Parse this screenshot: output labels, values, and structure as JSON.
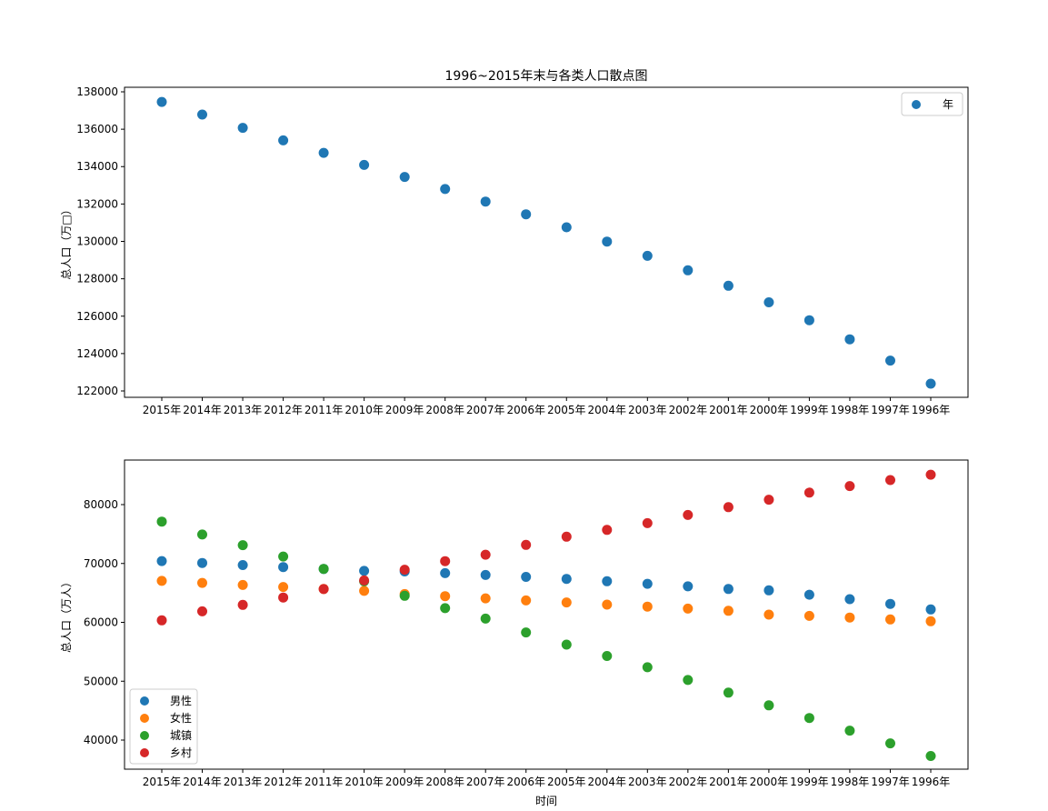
{
  "chart_data": [
    {
      "type": "scatter",
      "title": "1996~2015年末与各类人口散点图",
      "xlabel": "",
      "ylabel": "总人口（万□）",
      "categories": [
        "2015年",
        "2014年",
        "2013年",
        "2012年",
        "2011年",
        "2010年",
        "2009年",
        "2008年",
        "2007年",
        "2006年",
        "2005年",
        "2004年",
        "2003年",
        "2002年",
        "2001年",
        "2000年",
        "1999年",
        "1998年",
        "1997年",
        "1996年"
      ],
      "yticks": [
        122000,
        124000,
        126000,
        128000,
        130000,
        132000,
        134000,
        136000,
        138000
      ],
      "ylim": [
        121660,
        138243
      ],
      "legend": "top-right",
      "grid": false,
      "series": [
        {
          "name": "年",
          "color": "#1f77b4",
          "values": [
            137462,
            136782,
            136072,
            135404,
            134735,
            134091,
            133450,
            132802,
            132129,
            131448,
            130756,
            129988,
            129227,
            128453,
            127627,
            126743,
            125786,
            124761,
            123626,
            122389
          ]
        }
      ]
    },
    {
      "type": "scatter",
      "title": "",
      "xlabel": "时间",
      "ylabel": "总人口（万人）",
      "categories": [
        "2015年",
        "2014年",
        "2013年",
        "2012年",
        "2011年",
        "2010年",
        "2009年",
        "2008年",
        "2007年",
        "2006年",
        "2005年",
        "2004年",
        "2003年",
        "2002年",
        "2001年",
        "2000年",
        "1999年",
        "1998年",
        "1997年",
        "1996年"
      ],
      "yticks": [
        40000,
        50000,
        60000,
        70000,
        80000
      ],
      "ylim": [
        35058,
        87568
      ],
      "legend": "lower-left",
      "grid": false,
      "series": [
        {
          "name": "男性",
          "color": "#1f77b4",
          "values": [
            70414,
            70079,
            69728,
            69395,
            69068,
            68748,
            68647,
            68357,
            68048,
            67728,
            67375,
            66976,
            66556,
            66115,
            65672,
            65437,
            64692,
            63940,
            63131,
            62200
          ]
        },
        {
          "name": "女性",
          "color": "#ff7f0e",
          "values": [
            67048,
            66703,
            66344,
            66009,
            65667,
            65343,
            64803,
            64445,
            64081,
            63720,
            63381,
            63012,
            62671,
            62338,
            61955,
            61306,
            61094,
            60821,
            60495,
            60189
          ]
        },
        {
          "name": "城镇",
          "color": "#2ca02c",
          "values": [
            77116,
            74916,
            73111,
            71182,
            69079,
            66978,
            64512,
            62403,
            60633,
            58288,
            56212,
            54283,
            52376,
            50212,
            48064,
            45906,
            43748,
            41608,
            39449,
            37304
          ]
        },
        {
          "name": "乡村",
          "color": "#d62728",
          "values": [
            60346,
            61866,
            62961,
            64222,
            65656,
            67113,
            68938,
            70399,
            71496,
            73160,
            74544,
            75705,
            76851,
            78241,
            79563,
            80837,
            82038,
            83153,
            84177,
            85085
          ]
        }
      ]
    }
  ]
}
